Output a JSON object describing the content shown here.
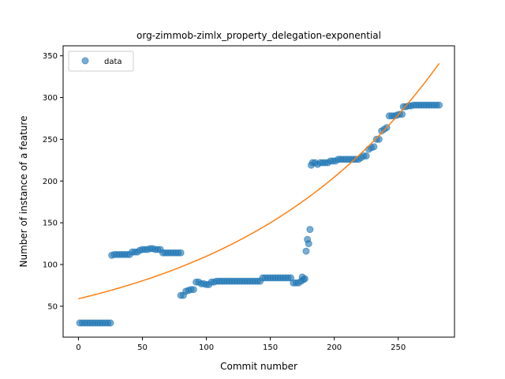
{
  "chart_data": {
    "type": "scatter",
    "title": "org-zimmob-zimlx_property_delegation-exponential",
    "xlabel": "Commit number",
    "ylabel": "Number of instance of a feature",
    "xlim": [
      -12,
      294
    ],
    "ylim": [
      13,
      362
    ],
    "xticks": [
      0,
      50,
      100,
      150,
      200,
      250
    ],
    "yticks": [
      50,
      100,
      150,
      200,
      250,
      300,
      350
    ],
    "grid": false,
    "legend": {
      "position": "top-left",
      "entries": [
        "data"
      ]
    },
    "colors": {
      "data": "#1f77b4",
      "fit": "#ff7f0e"
    },
    "series": [
      {
        "name": "data",
        "kind": "scatter",
        "points": [
          [
            1,
            30
          ],
          [
            3,
            30
          ],
          [
            5,
            30
          ],
          [
            7,
            30
          ],
          [
            9,
            30
          ],
          [
            11,
            30
          ],
          [
            13,
            30
          ],
          [
            15,
            30
          ],
          [
            17,
            30
          ],
          [
            19,
            30
          ],
          [
            21,
            30
          ],
          [
            23,
            30
          ],
          [
            25,
            30
          ],
          [
            26,
            111
          ],
          [
            28,
            112
          ],
          [
            30,
            112
          ],
          [
            32,
            112
          ],
          [
            34,
            112
          ],
          [
            36,
            112
          ],
          [
            38,
            112
          ],
          [
            40,
            112
          ],
          [
            42,
            115
          ],
          [
            44,
            115
          ],
          [
            46,
            115
          ],
          [
            48,
            117
          ],
          [
            50,
            118
          ],
          [
            52,
            118
          ],
          [
            54,
            118
          ],
          [
            56,
            119
          ],
          [
            58,
            119
          ],
          [
            60,
            118
          ],
          [
            62,
            118
          ],
          [
            64,
            118
          ],
          [
            66,
            114
          ],
          [
            68,
            114
          ],
          [
            70,
            114
          ],
          [
            72,
            114
          ],
          [
            74,
            114
          ],
          [
            76,
            114
          ],
          [
            78,
            114
          ],
          [
            80,
            114
          ],
          [
            80,
            63
          ],
          [
            82,
            63
          ],
          [
            84,
            68
          ],
          [
            86,
            69
          ],
          [
            88,
            70
          ],
          [
            90,
            70
          ],
          [
            92,
            79
          ],
          [
            94,
            79
          ],
          [
            96,
            77
          ],
          [
            98,
            77
          ],
          [
            100,
            76
          ],
          [
            102,
            76
          ],
          [
            104,
            79
          ],
          [
            106,
            79
          ],
          [
            108,
            80
          ],
          [
            110,
            80
          ],
          [
            112,
            80
          ],
          [
            114,
            80
          ],
          [
            116,
            80
          ],
          [
            118,
            80
          ],
          [
            120,
            80
          ],
          [
            122,
            80
          ],
          [
            124,
            80
          ],
          [
            126,
            80
          ],
          [
            128,
            80
          ],
          [
            130,
            80
          ],
          [
            132,
            80
          ],
          [
            134,
            80
          ],
          [
            136,
            80
          ],
          [
            138,
            80
          ],
          [
            140,
            80
          ],
          [
            142,
            80
          ],
          [
            144,
            84
          ],
          [
            146,
            84
          ],
          [
            148,
            84
          ],
          [
            150,
            84
          ],
          [
            152,
            84
          ],
          [
            154,
            84
          ],
          [
            156,
            84
          ],
          [
            158,
            84
          ],
          [
            160,
            84
          ],
          [
            162,
            84
          ],
          [
            164,
            84
          ],
          [
            166,
            84
          ],
          [
            168,
            78
          ],
          [
            170,
            78
          ],
          [
            172,
            78
          ],
          [
            174,
            80
          ],
          [
            175,
            85
          ],
          [
            176,
            82
          ],
          [
            177,
            83
          ],
          [
            178,
            116
          ],
          [
            179,
            130
          ],
          [
            180,
            125
          ],
          [
            181,
            142
          ],
          [
            182,
            219
          ],
          [
            183,
            222
          ],
          [
            185,
            222
          ],
          [
            187,
            220
          ],
          [
            189,
            222
          ],
          [
            191,
            222
          ],
          [
            193,
            222
          ],
          [
            195,
            222
          ],
          [
            197,
            224
          ],
          [
            199,
            224
          ],
          [
            201,
            224
          ],
          [
            203,
            226
          ],
          [
            205,
            226
          ],
          [
            207,
            226
          ],
          [
            209,
            226
          ],
          [
            211,
            226
          ],
          [
            213,
            226
          ],
          [
            215,
            226
          ],
          [
            217,
            226
          ],
          [
            219,
            226
          ],
          [
            221,
            228
          ],
          [
            223,
            230
          ],
          [
            225,
            230
          ],
          [
            227,
            238
          ],
          [
            229,
            240
          ],
          [
            231,
            241
          ],
          [
            233,
            250
          ],
          [
            235,
            250
          ],
          [
            237,
            260
          ],
          [
            239,
            262
          ],
          [
            241,
            264
          ],
          [
            243,
            278
          ],
          [
            245,
            278
          ],
          [
            247,
            278
          ],
          [
            249,
            279
          ],
          [
            251,
            280
          ],
          [
            253,
            280
          ],
          [
            254,
            289
          ],
          [
            256,
            289
          ],
          [
            258,
            290
          ],
          [
            260,
            290
          ],
          [
            262,
            291
          ],
          [
            264,
            291
          ],
          [
            266,
            291
          ],
          [
            268,
            291
          ],
          [
            270,
            291
          ],
          [
            272,
            291
          ],
          [
            274,
            291
          ],
          [
            276,
            291
          ],
          [
            278,
            291
          ],
          [
            280,
            291
          ],
          [
            282,
            291
          ]
        ]
      },
      {
        "name": "",
        "kind": "line",
        "model": {
          "form": "a*exp(b*x)",
          "a": 59,
          "b": 0.00622,
          "x_range": [
            0,
            282
          ]
        }
      }
    ]
  }
}
